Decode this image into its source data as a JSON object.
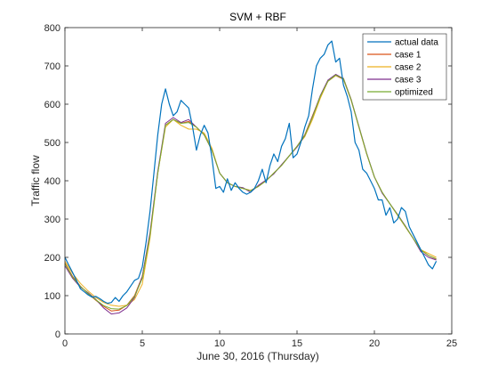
{
  "chart_data": {
    "type": "line",
    "title": "SVM + RBF",
    "xlabel": "June 30, 2016 (Thursday)",
    "ylabel": "Traffic flow",
    "xlim": [
      0,
      25
    ],
    "ylim": [
      0,
      800
    ],
    "xticks": [
      "0",
      "5",
      "10",
      "15",
      "20",
      "25"
    ],
    "yticks": [
      "0",
      "100",
      "200",
      "300",
      "400",
      "500",
      "600",
      "700",
      "800"
    ],
    "grid": false,
    "legend_position": "top-right",
    "series": [
      {
        "name": "actual data",
        "color": "#0072BD",
        "x": [
          0,
          0.25,
          0.5,
          0.75,
          1,
          1.25,
          1.5,
          1.75,
          2,
          2.25,
          2.5,
          2.75,
          3,
          3.25,
          3.5,
          3.75,
          4,
          4.25,
          4.5,
          4.75,
          5,
          5.25,
          5.5,
          5.75,
          6,
          6.25,
          6.5,
          6.75,
          7,
          7.25,
          7.5,
          7.75,
          8,
          8.25,
          8.5,
          8.75,
          9,
          9.25,
          9.5,
          9.75,
          10,
          10.25,
          10.5,
          10.75,
          11,
          11.25,
          11.5,
          11.75,
          12,
          12.25,
          12.5,
          12.75,
          13,
          13.25,
          13.5,
          13.75,
          14,
          14.25,
          14.5,
          14.75,
          15,
          15.25,
          15.5,
          15.75,
          16,
          16.25,
          16.5,
          16.75,
          17,
          17.25,
          17.5,
          17.75,
          18,
          18.25,
          18.5,
          18.75,
          19,
          19.25,
          19.5,
          19.75,
          20,
          20.25,
          20.5,
          20.75,
          21,
          21.25,
          21.5,
          21.75,
          22,
          22.25,
          22.5,
          22.75,
          23,
          23.25,
          23.5,
          23.75,
          24
        ],
        "y": [
          200,
          180,
          160,
          140,
          118,
          110,
          102,
          96,
          98,
          92,
          85,
          80,
          82,
          95,
          85,
          100,
          110,
          125,
          140,
          145,
          175,
          240,
          320,
          420,
          520,
          600,
          640,
          600,
          570,
          580,
          610,
          600,
          590,
          540,
          480,
          520,
          545,
          525,
          460,
          380,
          385,
          370,
          405,
          375,
          395,
          380,
          370,
          365,
          370,
          380,
          400,
          430,
          395,
          440,
          470,
          450,
          490,
          510,
          550,
          460,
          470,
          500,
          540,
          570,
          640,
          700,
          720,
          730,
          755,
          765,
          710,
          720,
          650,
          620,
          580,
          500,
          480,
          430,
          420,
          400,
          380,
          350,
          350,
          310,
          330,
          290,
          300,
          330,
          320,
          280,
          260,
          240,
          220,
          200,
          180,
          170,
          190
        ]
      },
      {
        "name": "case 1",
        "color": "#D95319",
        "x": [
          0,
          0.5,
          1,
          1.5,
          2,
          2.5,
          3,
          3.5,
          4,
          4.5,
          5,
          5.5,
          6,
          6.5,
          7,
          7.5,
          8,
          8.5,
          9,
          9.5,
          10,
          10.5,
          11,
          11.5,
          12,
          12.5,
          13,
          13.5,
          14,
          14.5,
          15,
          15.5,
          16,
          16.5,
          17,
          17.5,
          18,
          18.5,
          19,
          19.5,
          20,
          20.5,
          21,
          21.5,
          22,
          22.5,
          23,
          23.5,
          24
        ],
        "y": [
          185,
          150,
          125,
          105,
          88,
          72,
          60,
          62,
          75,
          100,
          150,
          260,
          420,
          545,
          560,
          550,
          555,
          540,
          520,
          480,
          420,
          395,
          385,
          380,
          375,
          385,
          400,
          420,
          440,
          465,
          490,
          520,
          570,
          620,
          660,
          675,
          665,
          610,
          540,
          470,
          410,
          370,
          340,
          310,
          280,
          250,
          220,
          205,
          195
        ]
      },
      {
        "name": "case 2",
        "color": "#EDB120",
        "x": [
          0,
          0.5,
          1,
          1.5,
          2,
          2.5,
          3,
          3.5,
          4,
          4.5,
          5,
          5.5,
          6,
          6.5,
          7,
          7.5,
          8,
          8.5,
          9,
          9.5,
          10,
          10.5,
          11,
          11.5,
          12,
          12.5,
          13,
          13.5,
          14,
          14.5,
          15,
          15.5,
          16,
          16.5,
          17,
          17.5,
          18,
          18.5,
          19,
          19.5,
          20,
          20.5,
          21,
          21.5,
          22,
          22.5,
          23,
          23.5,
          24
        ],
        "y": [
          190,
          158,
          132,
          112,
          95,
          82,
          75,
          72,
          75,
          90,
          130,
          250,
          420,
          540,
          560,
          545,
          535,
          535,
          525,
          485,
          420,
          395,
          385,
          380,
          375,
          385,
          400,
          420,
          440,
          465,
          490,
          515,
          560,
          615,
          660,
          675,
          668,
          612,
          540,
          470,
          410,
          370,
          340,
          310,
          280,
          250,
          220,
          210,
          200
        ]
      },
      {
        "name": "case 3",
        "color": "#7E2F8E",
        "x": [
          0,
          0.5,
          1,
          1.5,
          2,
          2.5,
          3,
          3.5,
          4,
          4.5,
          5,
          5.5,
          6,
          6.5,
          7,
          7.5,
          8,
          8.5,
          9,
          9.5,
          10,
          10.5,
          11,
          11.5,
          12,
          12.5,
          13,
          13.5,
          14,
          14.5,
          15,
          15.5,
          16,
          16.5,
          17,
          17.5,
          18,
          18.5,
          19,
          19.5,
          20,
          20.5,
          21,
          21.5,
          22,
          22.5,
          23,
          23.5,
          24
        ],
        "y": [
          178,
          145,
          122,
          108,
          90,
          68,
          52,
          55,
          68,
          95,
          150,
          265,
          425,
          550,
          565,
          552,
          560,
          540,
          520,
          480,
          420,
          395,
          385,
          382,
          370,
          388,
          402,
          418,
          442,
          465,
          488,
          518,
          568,
          622,
          663,
          678,
          667,
          612,
          542,
          472,
          410,
          368,
          340,
          312,
          282,
          250,
          215,
          200,
          193
        ]
      },
      {
        "name": "optimized",
        "color": "#77AC30",
        "x": [
          0,
          0.5,
          1,
          1.5,
          2,
          2.5,
          3,
          3.5,
          4,
          4.5,
          5,
          5.5,
          6,
          6.5,
          7,
          7.5,
          8,
          8.5,
          9,
          9.5,
          10,
          10.5,
          11,
          11.5,
          12,
          12.5,
          13,
          13.5,
          14,
          14.5,
          15,
          15.5,
          16,
          16.5,
          17,
          17.5,
          18,
          18.5,
          19,
          19.5,
          20,
          20.5,
          21,
          21.5,
          22,
          22.5,
          23,
          23.5,
          24
        ],
        "y": [
          183,
          148,
          124,
          106,
          89,
          74,
          66,
          65,
          74,
          98,
          145,
          258,
          420,
          545,
          560,
          550,
          552,
          540,
          520,
          480,
          420,
          395,
          385,
          380,
          374,
          385,
          400,
          420,
          440,
          465,
          490,
          518,
          566,
          620,
          660,
          676,
          666,
          611,
          541,
          471,
          410,
          370,
          340,
          311,
          281,
          250,
          219,
          205,
          196
        ]
      }
    ]
  }
}
